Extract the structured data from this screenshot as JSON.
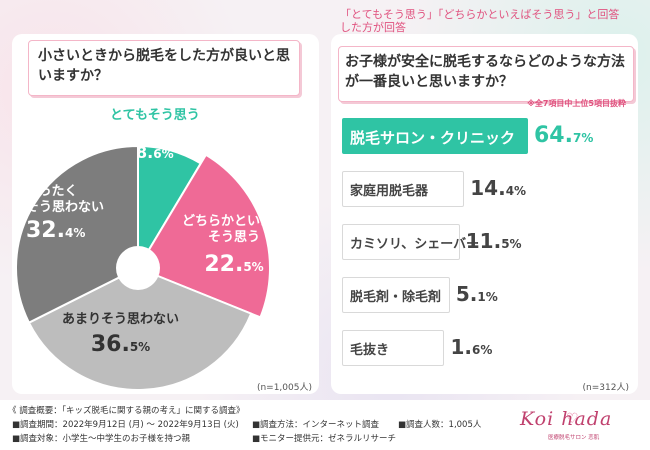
{
  "left": {
    "question": "小さいときから脱毛をした方が良いと思いますか？",
    "n": "(n=1,005人)"
  },
  "right": {
    "condition": "「とてもそう思う」「どちらかといえばそう思う」と回答した方が回答",
    "question": "お子様が安全に脱毛するならどのような方法が一番良いと思いますか？",
    "note": "※全7項目中上位5項目抜粋",
    "n": "(n=312人)"
  },
  "chart_data": [
    {
      "type": "pie",
      "title": "小さいときから脱毛をした方が良いと思いますか？",
      "slices": [
        {
          "label": "とてもそう思う",
          "value": 8.6,
          "color": "#2fc4a4"
        },
        {
          "label": "どちらかといえばそう思う",
          "value": 22.5,
          "color": "#ef6a96"
        },
        {
          "label": "あまりそう思わない",
          "value": 36.5,
          "color": "#bdbdbd"
        },
        {
          "label": "まったくそう思わない",
          "value": 32.4,
          "color": "#7d7d7d"
        }
      ],
      "donut": true
    },
    {
      "type": "bar",
      "orientation": "horizontal",
      "title": "お子様が安全に脱毛するならどのような方法が一番良いと思いますか？",
      "categories": [
        "脱毛サロン・クリニック",
        "家庭用脱毛器",
        "カミソリ、シェーバー",
        "脱毛剤・除毛剤",
        "毛抜き"
      ],
      "values": [
        64.7,
        14.4,
        11.5,
        5.1,
        1.6
      ],
      "highlight_color": "#2fc4a4"
    }
  ],
  "footer": {
    "summary_title": "《 調査概要：「キッズ脱毛に関する親の考え」に関する調査》",
    "period": "■調査期間：2022年9月12日 (月) ～ 2022年9月13日 (火)",
    "target": "■調査対象：小学生～中学生のお子様を持つ親",
    "method": "■調査方法：インターネット調査",
    "count": "■調査人数：1,005人",
    "provider": "■モニター提供元：ゼネラルリサーチ",
    "logo": "Koi   hada",
    "logo_sub": "医療脱毛サロン 恋肌"
  }
}
